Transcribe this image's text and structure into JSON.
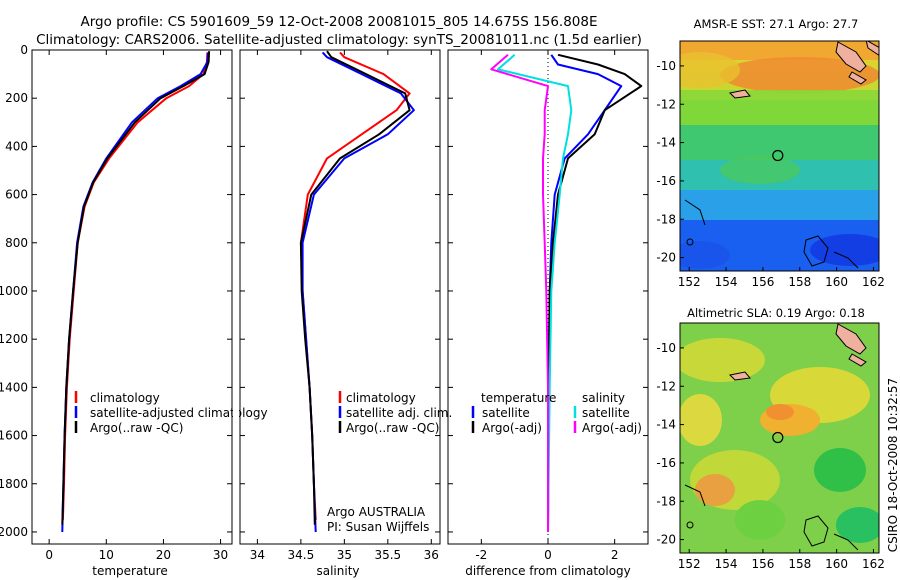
{
  "figure": {
    "title_line1": "Argo profile: CS 5901609_59 12-Oct-2008 20081015_805 14.675S 156.808E",
    "title_line2": "Climatology: CARS2006. Satellite-adjusted climatology: synTS_20081011.nc (1.5d earlier)",
    "side_caption": "CSIRO 18-Oct-2008 10:32:57",
    "annotation_line1": "Argo AUSTRALIA",
    "annotation_line2": "PI: Susan Wijffels"
  },
  "colors": {
    "climatology": "#ff0000",
    "satellite": "#0000ff",
    "argo": "#000000",
    "satellite_salinity": "#00e0e0",
    "argo_adj_salinity": "#ff00ff"
  },
  "chart_data": [
    {
      "type": "line",
      "panel": "temperature",
      "xlabel": "temperature",
      "xlim": [
        -3,
        32
      ],
      "ylim": [
        2050,
        0
      ],
      "x_ticks": [
        "0",
        "10",
        "20",
        "30"
      ],
      "x_tick_values": [
        0,
        10,
        20,
        30
      ],
      "y_ticks": [
        "0",
        "200",
        "400",
        "600",
        "800",
        "1000",
        "1200",
        "1400",
        "1600",
        "1800",
        "2000"
      ],
      "y_tick_values": [
        0,
        200,
        400,
        600,
        800,
        1000,
        1200,
        1400,
        1600,
        1800,
        2000
      ],
      "legend": [
        "climatology",
        "satellite-adjusted climatology",
        "Argo(..raw -QC)"
      ],
      "series": [
        {
          "name": "climatology",
          "color": "#ff0000",
          "x": [
            27.7,
            27.6,
            27.0,
            24.5,
            20.5,
            15.5,
            10.5,
            7.8,
            6.2,
            5.0,
            4.3,
            3.6,
            3.1,
            2.8,
            2.6,
            2.4
          ],
          "y": [
            10,
            50,
            100,
            150,
            200,
            300,
            450,
            550,
            650,
            800,
            1000,
            1200,
            1400,
            1600,
            1800,
            1950
          ]
        },
        {
          "name": "satellite-adjusted climatology",
          "color": "#0000ff",
          "x": [
            27.8,
            27.7,
            26.5,
            23.0,
            19.0,
            14.5,
            10.0,
            7.6,
            6.0,
            4.9,
            4.2,
            3.5,
            3.0,
            2.7,
            2.5,
            2.3
          ],
          "y": [
            10,
            50,
            100,
            150,
            200,
            300,
            450,
            550,
            650,
            800,
            1000,
            1200,
            1400,
            1600,
            1800,
            2000
          ]
        },
        {
          "name": "Argo(..raw -QC)",
          "color": "#000000",
          "x": [
            28.0,
            27.9,
            27.2,
            23.5,
            19.5,
            15.0,
            10.2,
            7.7,
            6.1,
            5.0,
            4.2,
            3.5,
            3.0,
            2.7,
            2.5,
            2.3
          ],
          "y": [
            5,
            50,
            100,
            150,
            200,
            300,
            450,
            550,
            650,
            800,
            1000,
            1200,
            1400,
            1600,
            1800,
            1970
          ]
        }
      ]
    },
    {
      "type": "line",
      "panel": "salinity",
      "xlabel": "salinity",
      "xlim": [
        33.8,
        36.1
      ],
      "ylim": [
        2050,
        0
      ],
      "x_ticks": [
        "34",
        "34.5",
        "35",
        "35.5",
        "36"
      ],
      "x_tick_values": [
        34,
        34.5,
        35,
        35.5,
        36
      ],
      "legend": [
        "climatology",
        "satellite adj. clim.",
        "Argo(..raw -QC)"
      ],
      "series": [
        {
          "name": "climatology",
          "color": "#ff0000",
          "x": [
            34.95,
            35.0,
            35.45,
            35.75,
            35.6,
            35.2,
            34.8,
            34.58,
            34.5,
            34.52,
            34.56,
            34.6,
            34.63,
            34.65,
            34.67
          ],
          "y": [
            10,
            30,
            100,
            180,
            250,
            350,
            450,
            600,
            800,
            1000,
            1200,
            1400,
            1600,
            1800,
            1950
          ]
        },
        {
          "name": "satellite adj. clim.",
          "color": "#0000ff",
          "x": [
            34.75,
            34.8,
            35.2,
            35.65,
            35.8,
            35.5,
            35.0,
            34.65,
            34.52,
            34.52,
            34.56,
            34.6,
            34.63,
            34.65,
            34.67
          ],
          "y": [
            10,
            30,
            100,
            180,
            250,
            350,
            450,
            600,
            800,
            1000,
            1200,
            1400,
            1600,
            1800,
            2000
          ]
        },
        {
          "name": "Argo(..raw -QC)",
          "color": "#000000",
          "x": [
            34.8,
            34.85,
            35.25,
            35.7,
            35.75,
            35.4,
            34.95,
            34.62,
            34.5,
            34.51,
            34.55,
            34.6,
            34.63,
            34.65,
            34.66
          ],
          "y": [
            5,
            30,
            100,
            180,
            250,
            350,
            450,
            600,
            800,
            1000,
            1200,
            1400,
            1600,
            1800,
            1970
          ]
        }
      ],
      "annotations": [
        "Argo AUSTRALIA",
        "PI: Susan Wijffels"
      ]
    },
    {
      "type": "line",
      "panel": "difference",
      "xlabel": "difference from climatology",
      "xlim": [
        -3,
        3
      ],
      "ylim": [
        2050,
        0
      ],
      "x_ticks": [
        "-2",
        "0",
        "2"
      ],
      "x_tick_values": [
        -2,
        0,
        2
      ],
      "legend_groups": [
        {
          "header": "temperature",
          "items": [
            "satellite",
            "Argo(-adj)"
          ]
        },
        {
          "header": "salinity",
          "items": [
            "satellite",
            "Argo(-adj)"
          ]
        }
      ],
      "series": [
        {
          "name": "temperature satellite",
          "color": "#0000ff",
          "x": [
            0.1,
            0.3,
            1.5,
            2.2,
            1.7,
            1.2,
            0.5,
            0.2,
            0.1,
            0.05,
            0.02,
            0.0
          ],
          "y": [
            20,
            60,
            100,
            150,
            250,
            350,
            450,
            600,
            800,
            1000,
            1400,
            2000
          ]
        },
        {
          "name": "temperature Argo(-adj)",
          "color": "#000000",
          "x": [
            0.3,
            1.5,
            2.3,
            2.8,
            1.7,
            1.4,
            0.6,
            0.3,
            0.15,
            0.05,
            0.02,
            0.0
          ],
          "y": [
            20,
            60,
            100,
            150,
            250,
            350,
            450,
            600,
            800,
            1000,
            1400,
            2000
          ]
        },
        {
          "name": "salinity satellite",
          "color": "#00e0e0",
          "x": [
            -1.0,
            -1.5,
            0.6,
            0.7,
            0.6,
            0.45,
            0.35,
            0.2,
            0.1,
            0.05,
            0.0
          ],
          "y": [
            20,
            80,
            150,
            250,
            350,
            450,
            600,
            800,
            1000,
            1400,
            2000
          ]
        },
        {
          "name": "salinity Argo(-adj)",
          "color": "#ff00ff",
          "x": [
            -1.2,
            -1.7,
            0.0,
            -0.1,
            -0.1,
            -0.15,
            -0.15,
            -0.1,
            -0.05,
            0.0,
            0.0
          ],
          "y": [
            20,
            80,
            150,
            250,
            350,
            450,
            600,
            800,
            1000,
            1400,
            2000
          ]
        }
      ]
    },
    {
      "type": "heatmap",
      "panel": "AMSR-E SST",
      "title": "AMSR-E SST: 27.1 Argo: 27.7",
      "x_ticks": [
        "152",
        "154",
        "156",
        "158",
        "160",
        "162"
      ],
      "x_tick_values": [
        152,
        154,
        156,
        158,
        160,
        162
      ],
      "y_ticks": [
        "-10",
        "-12",
        "-14",
        "-16",
        "-18",
        "-20"
      ],
      "y_tick_values": [
        -10,
        -12,
        -14,
        -16,
        -18,
        -20
      ],
      "xlim": [
        151.5,
        162.3
      ],
      "ylim": [
        -20.7,
        -8.7
      ],
      "marker": {
        "lon": 156.808,
        "lat": -14.675
      }
    },
    {
      "type": "heatmap",
      "panel": "Altimetric SLA",
      "title": "Altimetric SLA: 0.19 Argo: 0.18",
      "x_ticks": [
        "152",
        "154",
        "156",
        "158",
        "160",
        "162"
      ],
      "x_tick_values": [
        152,
        154,
        156,
        158,
        160,
        162
      ],
      "y_ticks": [
        "-10",
        "-12",
        "-14",
        "-16",
        "-18",
        "-20"
      ],
      "y_tick_values": [
        -10,
        -12,
        -14,
        -16,
        -18,
        -20
      ],
      "xlim": [
        151.5,
        162.3
      ],
      "ylim": [
        -20.7,
        -8.7
      ],
      "marker": {
        "lon": 156.808,
        "lat": -14.675
      }
    }
  ]
}
